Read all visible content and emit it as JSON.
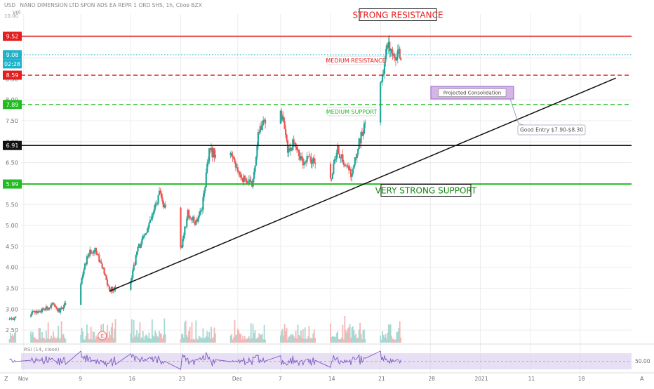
{
  "header": {
    "currency": "USD",
    "symbol_line": "NANO DIMENSION LTD SPON ADS EA REPR 1 ORD SHS, 1h, Cboe BZX",
    "vol_label": "vol",
    "corner_value": "10.00"
  },
  "chart_data": {
    "type": "candlestick",
    "title": "NANO DIMENSION LTD SPON ADS EA REPR 1 ORD SHS, 1h, Cboe BZX",
    "y_ticks": [
      "2.50",
      "3.00",
      "3.50",
      "4.00",
      "4.50",
      "5.00",
      "5.50",
      "6.00",
      "6.50",
      "7.00",
      "7.50",
      "8.00",
      "8.50",
      "9.00",
      "9.50"
    ],
    "ylim": [
      2.2,
      10.05
    ],
    "x_ticks": [
      "Nov",
      "9",
      "16",
      "23",
      "Dec",
      "7",
      "14",
      "21",
      "28",
      "2021",
      "11",
      "18"
    ],
    "grid": true,
    "price_labels": [
      {
        "text": "9.52",
        "value": 9.52,
        "color": "#e41e1e"
      },
      {
        "text": "9.08",
        "value": 9.08,
        "color": "#1fb3c9"
      },
      {
        "text": "02:28",
        "value": 8.86,
        "color": "#1fb3c9"
      },
      {
        "text": "8.59",
        "value": 8.59,
        "color": "#e41e1e"
      },
      {
        "text": "7.89",
        "value": 7.89,
        "color": "#22bb22"
      },
      {
        "text": "6.91",
        "value": 6.91,
        "color": "#111111"
      },
      {
        "text": "5.99",
        "value": 5.99,
        "color": "#22bb22"
      }
    ],
    "levels": [
      {
        "value": 9.52,
        "color": "#e41e1e",
        "style": "solid",
        "width": 1.6
      },
      {
        "value": 9.08,
        "color": "#1fb3c9",
        "style": "dotted",
        "width": 1
      },
      {
        "value": 8.59,
        "color": "#e41e1e",
        "style": "dashed",
        "width": 1.3
      },
      {
        "value": 7.89,
        "color": "#22bb22",
        "style": "dashed",
        "width": 1.2
      },
      {
        "value": 6.91,
        "color": "#111111",
        "style": "solid",
        "width": 1.6
      },
      {
        "value": 5.99,
        "color": "#22bb22",
        "style": "solid",
        "width": 1.8
      }
    ],
    "annotations": [
      {
        "text": "STRONG RESISTANCE",
        "color": "#e41e1e",
        "boxed": true,
        "size": 12
      },
      {
        "text": "MEDIUM RESISTANCE",
        "color": "#e41e1e",
        "boxed": true,
        "size": 8
      },
      {
        "text": "MEDIUM SUPPORT",
        "color": "#22bb22",
        "boxed": true,
        "size": 8
      },
      {
        "text": "VERY STRONG SUPPORT",
        "color": "#118811",
        "boxed": true,
        "size": 12
      },
      {
        "text": "Projected Consolidation",
        "color": "#444444",
        "boxed": true,
        "size": 7
      },
      {
        "text": "Good Entry $7.90-$8.30",
        "color": "#555555",
        "boxed": true,
        "size": 7.5
      }
    ],
    "trendline": {
      "start": {
        "date": "Nov 13",
        "price": 3.43
      },
      "end": {
        "date": "Jan 23",
        "price": 8.52
      },
      "color": "#111111"
    },
    "earnings_marker": "E",
    "rsi": {
      "label": "RSI (14, close)",
      "level_label": "50.00"
    },
    "colors": {
      "up": "#26a69a",
      "down": "#ef5350",
      "rsi_line": "#7e57c2",
      "rsi_band": "#d7cbec"
    },
    "keypoints": [
      {
        "date": "Oct 30",
        "price": 2.75
      },
      {
        "date": "Nov 2",
        "price": 2.9
      },
      {
        "date": "Nov 4",
        "price": 3.0
      },
      {
        "date": "Nov 5",
        "price": 3.1
      },
      {
        "date": "Nov 6",
        "price": 2.95
      },
      {
        "date": "Nov 9",
        "price": 3.65
      },
      {
        "date": "Nov 10",
        "price": 4.3
      },
      {
        "date": "Nov 11",
        "price": 4.45
      },
      {
        "date": "Nov 12",
        "price": 4.0
      },
      {
        "date": "Nov 13",
        "price": 3.45
      },
      {
        "date": "Nov 16",
        "price": 3.7
      },
      {
        "date": "Nov 17",
        "price": 4.45
      },
      {
        "date": "Nov 18",
        "price": 4.75
      },
      {
        "date": "Nov 19",
        "price": 5.2
      },
      {
        "date": "Nov 20",
        "price": 5.75
      },
      {
        "date": "Nov 23",
        "price": 4.4
      },
      {
        "date": "Nov 24",
        "price": 5.3
      },
      {
        "date": "Nov 25",
        "price": 5.05
      },
      {
        "date": "Nov 26",
        "price": 5.45
      },
      {
        "date": "Nov 27",
        "price": 6.75
      },
      {
        "date": "Nov 30",
        "price": 6.7
      },
      {
        "date": "Dec 1",
        "price": 6.25
      },
      {
        "date": "Dec 2",
        "price": 6.1
      },
      {
        "date": "Dec 3",
        "price": 5.95
      },
      {
        "date": "Dec 4",
        "price": 7.3
      },
      {
        "date": "Dec 7",
        "price": 7.78
      },
      {
        "date": "Dec 8",
        "price": 6.8
      },
      {
        "date": "Dec 9",
        "price": 7.0
      },
      {
        "date": "Dec 10",
        "price": 6.5
      },
      {
        "date": "Dec 11",
        "price": 6.6
      },
      {
        "date": "Dec 14",
        "price": 6.1
      },
      {
        "date": "Dec 15",
        "price": 6.8
      },
      {
        "date": "Dec 16",
        "price": 6.45
      },
      {
        "date": "Dec 17",
        "price": 6.2
      },
      {
        "date": "Dec 18",
        "price": 7.0
      },
      {
        "date": "Dec 21",
        "price": 8.3
      },
      {
        "date": "Dec 22",
        "price": 9.4
      },
      {
        "date": "Dec 23",
        "price": 9.08
      }
    ]
  }
}
